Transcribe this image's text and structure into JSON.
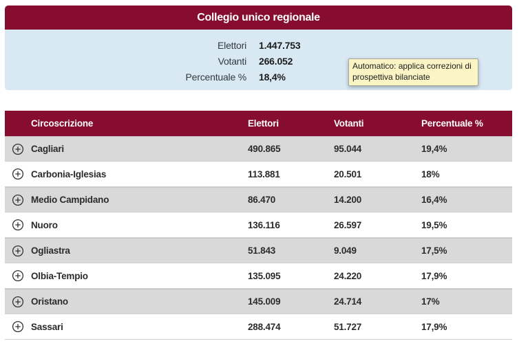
{
  "header": {
    "title": "Collegio unico regionale"
  },
  "summary": {
    "rows": [
      {
        "label": "Elettori",
        "value": "1.447.753"
      },
      {
        "label": "Votanti",
        "value": "266.052"
      },
      {
        "label": "Percentuale %",
        "value": "18,4%"
      }
    ]
  },
  "tooltip": {
    "text": "Automatico: applica correzioni di prospettiva bilanciate"
  },
  "table": {
    "columns": [
      "Circoscrizione",
      "Elettori",
      "Votanti",
      "Percentuale %"
    ],
    "expand_icon": "circle-plus",
    "rows": [
      {
        "circoscrizione": "Cagliari",
        "elettori": "490.865",
        "votanti": "95.044",
        "percentuale": "19,4%"
      },
      {
        "circoscrizione": "Carbonia-Iglesias",
        "elettori": "113.881",
        "votanti": "20.501",
        "percentuale": "18%"
      },
      {
        "circoscrizione": "Medio Campidano",
        "elettori": "86.470",
        "votanti": "14.200",
        "percentuale": "16,4%"
      },
      {
        "circoscrizione": "Nuoro",
        "elettori": "136.116",
        "votanti": "26.597",
        "percentuale": "19,5%"
      },
      {
        "circoscrizione": "Ogliastra",
        "elettori": "51.843",
        "votanti": "9.049",
        "percentuale": "17,5%"
      },
      {
        "circoscrizione": "Olbia-Tempio",
        "elettori": "135.095",
        "votanti": "24.220",
        "percentuale": "17,9%"
      },
      {
        "circoscrizione": "Oristano",
        "elettori": "145.009",
        "votanti": "24.714",
        "percentuale": "17%"
      },
      {
        "circoscrizione": "Sassari",
        "elettori": "288.474",
        "votanti": "51.727",
        "percentuale": "17,9%"
      }
    ]
  },
  "colors": {
    "maroon": "#860D2F",
    "panel_blue": "#D8E9F4",
    "row_gray": "#D9D9D9",
    "tooltip_yellow": "#FBF5C6"
  }
}
